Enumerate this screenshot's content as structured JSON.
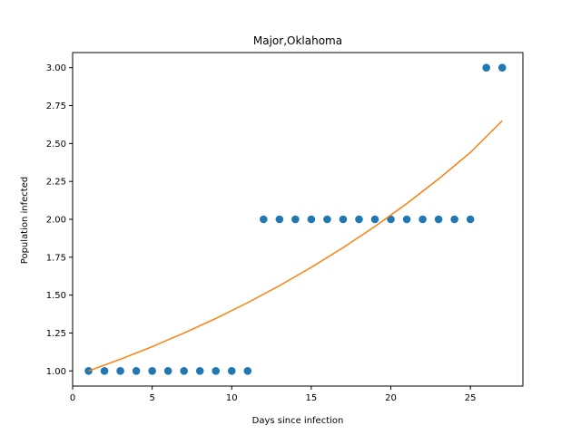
{
  "chart_data": {
    "type": "scatter",
    "title": "Major,Oklahoma",
    "xlabel": "Days since infection",
    "ylabel": "Population infected",
    "xlim": [
      0,
      28.3
    ],
    "ylim": [
      0.9,
      3.1
    ],
    "x_ticks": [
      0,
      5,
      10,
      15,
      20,
      25
    ],
    "y_ticks": [
      1.0,
      1.25,
      1.5,
      1.75,
      2.0,
      2.25,
      2.5,
      2.75,
      3.0
    ],
    "x_tick_labels": [
      "0",
      "5",
      "10",
      "15",
      "20",
      "25"
    ],
    "y_tick_labels": [
      "1.00",
      "1.25",
      "1.50",
      "1.75",
      "2.00",
      "2.25",
      "2.50",
      "2.75",
      "3.00"
    ],
    "grid": false,
    "series": [
      {
        "kind": "scatter",
        "color": "#1f77b4",
        "x": [
          1,
          2,
          3,
          4,
          5,
          6,
          7,
          8,
          9,
          10,
          11,
          12,
          13,
          14,
          15,
          16,
          17,
          18,
          19,
          20,
          21,
          22,
          23,
          24,
          25,
          26,
          27
        ],
        "y": [
          1,
          1,
          1,
          1,
          1,
          1,
          1,
          1,
          1,
          1,
          1,
          2,
          2,
          2,
          2,
          2,
          2,
          2,
          2,
          2,
          2,
          2,
          2,
          2,
          2,
          3,
          3
        ]
      },
      {
        "kind": "line",
        "color": "#ff7f0e",
        "x": [
          1,
          3,
          5,
          7,
          9,
          11,
          13,
          15,
          17,
          19,
          21,
          23,
          25,
          27
        ],
        "y": [
          1.0,
          1.077,
          1.16,
          1.25,
          1.346,
          1.45,
          1.562,
          1.683,
          1.813,
          1.953,
          2.104,
          2.266,
          2.441,
          2.65
        ]
      }
    ]
  }
}
